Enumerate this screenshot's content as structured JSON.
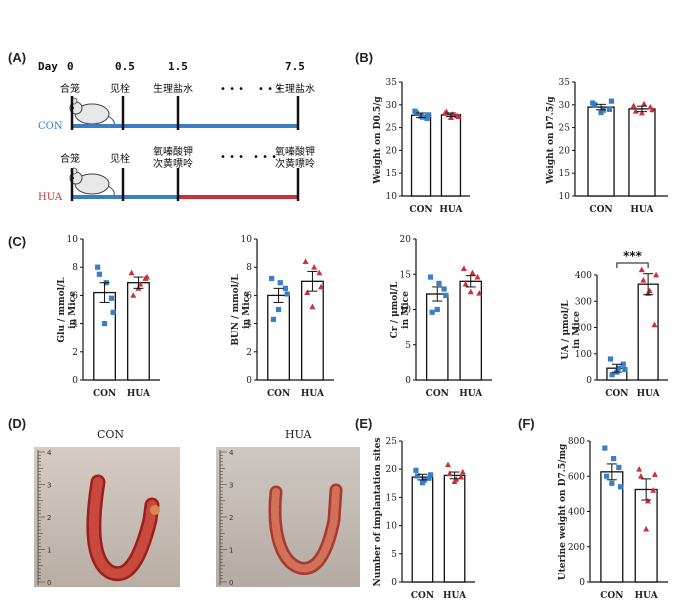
{
  "panel_labels": {
    "A": "(A)",
    "B": "(B)",
    "C": "(C)",
    "D": "(D)",
    "E": "(E)",
    "F": "(F)"
  },
  "colors": {
    "con": "#3a7fc4",
    "hua": "#c8323c",
    "axis": "#111111"
  },
  "timeline": {
    "day_label": "Day",
    "days": [
      "0",
      "0.5",
      "1.5",
      "7.5"
    ],
    "con": {
      "group": "CON",
      "labels": [
        "合笼",
        "见栓",
        "生理盐水",
        "生理盐水"
      ]
    },
    "hua": {
      "group": "HUA",
      "labels": [
        "合笼",
        "见栓",
        "氧嗪酸钾",
        "次黄嘌呤",
        "氧嗪酸钾",
        "次黄嘌呤"
      ]
    },
    "dots": "• • •"
  },
  "photos": {
    "con_title": "CON",
    "hua_title": "HUA",
    "ruler_numbers": [
      "4",
      "3",
      "2",
      "1",
      "0"
    ]
  },
  "chart_data": [
    {
      "id": "weight-d05",
      "type": "bar",
      "ylabel": "Weight on D0.5/g",
      "categories": [
        "CON",
        "HUA"
      ],
      "ylim": [
        10,
        35
      ],
      "yticks": [
        10,
        15,
        20,
        25,
        30,
        35
      ],
      "values": [
        27.7,
        27.8
      ],
      "sem": [
        0.5,
        0.4
      ],
      "points": [
        [
          28.6,
          27.5,
          27.0,
          28.2,
          27.3,
          27.8
        ],
        [
          28.1,
          27.2,
          27.6,
          28.5,
          27.9,
          27.4
        ]
      ]
    },
    {
      "id": "weight-d75",
      "type": "bar",
      "ylabel": "Weight on D7.5/g",
      "categories": [
        "CON",
        "HUA"
      ],
      "ylim": [
        10,
        35
      ],
      "yticks": [
        10,
        15,
        20,
        25,
        30,
        35
      ],
      "values": [
        29.5,
        29.1
      ],
      "sem": [
        0.6,
        0.6
      ],
      "points": [
        [
          30.4,
          28.3,
          29.0,
          30.0,
          28.8,
          30.8
        ],
        [
          29.8,
          28.2,
          29.5,
          28.6,
          30.2,
          28.9
        ]
      ]
    },
    {
      "id": "glu",
      "type": "bar",
      "ylabel": "Glu / mmol/L",
      "ylabel2": "in Mice",
      "categories": [
        "CON",
        "HUA"
      ],
      "ylim": [
        0,
        10
      ],
      "yticks": [
        0,
        2,
        4,
        6,
        8,
        10
      ],
      "values": [
        6.2,
        6.9
      ],
      "sem": [
        0.7,
        0.4
      ],
      "points": [
        [
          8.0,
          4.0,
          5.8,
          7.5,
          6.9,
          4.8
        ],
        [
          7.6,
          6.5,
          7.2,
          6.0,
          6.8,
          7.3
        ]
      ]
    },
    {
      "id": "bun",
      "type": "bar",
      "ylabel": "BUN / mmol/L",
      "ylabel2": "in Mice",
      "categories": [
        "CON",
        "HUA"
      ],
      "ylim": [
        0,
        10
      ],
      "yticks": [
        0,
        2,
        4,
        6,
        8,
        10
      ],
      "values": [
        6.0,
        7.0
      ],
      "sem": [
        0.5,
        0.7
      ],
      "points": [
        [
          7.2,
          5.0,
          6.5,
          4.3,
          6.9,
          6.1
        ],
        [
          8.4,
          5.2,
          7.6,
          6.2,
          8.0,
          6.6
        ]
      ]
    },
    {
      "id": "cr",
      "type": "bar",
      "ylabel": "Cr / μmol/L",
      "ylabel2": "in Mice",
      "categories": [
        "CON",
        "HUA"
      ],
      "ylim": [
        0,
        20
      ],
      "yticks": [
        0,
        5,
        10,
        15,
        20
      ],
      "values": [
        12.2,
        14.0
      ],
      "sem": [
        1.0,
        0.8
      ],
      "points": [
        [
          14.6,
          10.0,
          12.9,
          9.6,
          13.7,
          12.0
        ],
        [
          15.8,
          12.5,
          14.6,
          13.6,
          15.2,
          12.3
        ]
      ]
    },
    {
      "id": "ua",
      "type": "bar",
      "ylabel": "UA / μmol/L",
      "ylabel2": "in Mice",
      "categories": [
        "CON",
        "HUA"
      ],
      "ylim": [
        0,
        400
      ],
      "yticks": [
        0,
        100,
        200,
        300,
        400
      ],
      "values": [
        45,
        365
      ],
      "sem": [
        15,
        40
      ],
      "significance": "***",
      "points": [
        [
          80,
          30,
          60,
          20,
          45,
          40
        ],
        [
          420,
          330,
          210,
          380,
          340,
          400
        ]
      ]
    },
    {
      "id": "implant",
      "type": "bar",
      "ylabel": "Number of implantation sites",
      "categories": [
        "CON",
        "HUA"
      ],
      "ylim": [
        0,
        25
      ],
      "yticks": [
        0,
        5,
        10,
        15,
        20,
        25
      ],
      "values": [
        18.6,
        18.9
      ],
      "sem": [
        0.5,
        0.6
      ],
      "points": [
        [
          19.8,
          17.6,
          18.4,
          18.8,
          18.0,
          19.0
        ],
        [
          20.8,
          17.8,
          18.6,
          19.2,
          18.2,
          19.5
        ]
      ]
    },
    {
      "id": "uterine",
      "type": "bar",
      "ylabel": "Uterine weight on D7.5/mg",
      "categories": [
        "CON",
        "HUA"
      ],
      "ylim": [
        0,
        800
      ],
      "yticks": [
        0,
        200,
        400,
        600,
        800
      ],
      "values": [
        625,
        525
      ],
      "sem": [
        45,
        60
      ],
      "points": [
        [
          760,
          560,
          650,
          600,
          700,
          540
        ],
        [
          640,
          300,
          520,
          600,
          460,
          610
        ]
      ]
    }
  ]
}
